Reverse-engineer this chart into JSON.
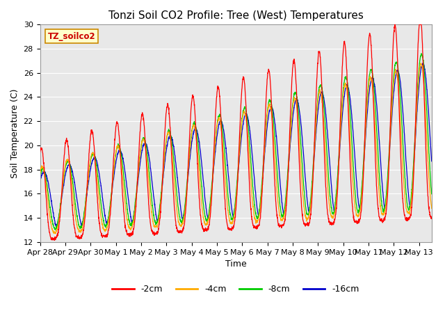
{
  "title": "Tonzi Soil CO2 Profile: Tree (West) Temperatures",
  "xlabel": "Time",
  "ylabel": "Soil Temperature (C)",
  "ylim": [
    12,
    30
  ],
  "background_color": "#ffffff",
  "plot_bg_color": "#e8e8e8",
  "grid_color": "#ffffff",
  "legend_label": "TZ_soilco2",
  "series_labels": [
    "-2cm",
    "-4cm",
    "-8cm",
    "-16cm"
  ],
  "series_colors": [
    "#ff0000",
    "#ffaa00",
    "#00cc00",
    "#0000cc"
  ],
  "x_tick_labels": [
    "Apr 28",
    "Apr 29",
    "Apr 30",
    "May 1",
    "May 2",
    "May 3",
    "May 4",
    "May 5",
    "May 6",
    "May 7",
    "May 8",
    "May 9",
    "May 10",
    "May 11",
    "May 12",
    "May 13"
  ],
  "title_fontsize": 11,
  "axis_fontsize": 9,
  "tick_fontsize": 8,
  "n_days": 15.5,
  "pts_per_day": 144
}
